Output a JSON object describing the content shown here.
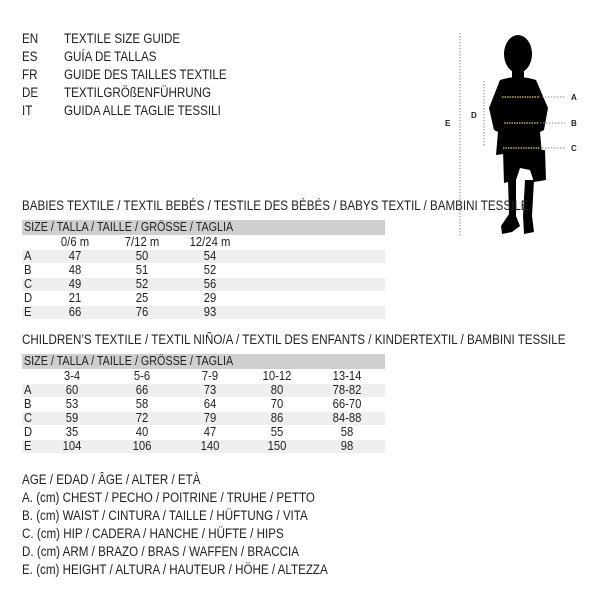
{
  "header": [
    {
      "code": "EN",
      "text": "TEXTILE SIZE GUIDE"
    },
    {
      "code": "ES",
      "text": "GUÍA DE TALLAS"
    },
    {
      "code": "FR",
      "text": "GUIDE DES TAILLES TEXTILE"
    },
    {
      "code": "DE",
      "text": "TEXTILGRÖßENFÜHRUNG"
    },
    {
      "code": "IT",
      "text": "GUIDA ALLE TAGLIE TESSILI"
    }
  ],
  "figure": {
    "labels": {
      "a": "A",
      "b": "B",
      "c": "C",
      "d": "D",
      "e": "E"
    },
    "measure_color": "#e8d21a"
  },
  "babies": {
    "title": "BABIES TEXTILE / TEXTIL BEBÉS / TESTILE DES BÉBÉS / BABYS TEXTIL / BAMBINI TESSILE",
    "size_header": "SIZE / TALLA / TAILLE / GRÖSSE / TAGLIA",
    "columns": [
      "0/6 m",
      "7/12 m",
      "12/24 m"
    ],
    "rows": [
      {
        "label": "A",
        "values": [
          "47",
          "50",
          "54"
        ]
      },
      {
        "label": "B",
        "values": [
          "48",
          "51",
          "52"
        ]
      },
      {
        "label": "C",
        "values": [
          "49",
          "52",
          "56"
        ]
      },
      {
        "label": "D",
        "values": [
          "21",
          "25",
          "29"
        ]
      },
      {
        "label": "E",
        "values": [
          "66",
          "76",
          "93"
        ]
      }
    ]
  },
  "children": {
    "title": "CHILDREN’S TEXTILE / TEXTIL NIÑO/A / TEXTIL DES ENFANTS / KINDERTEXTIL / BAMBINI TESSILE",
    "size_header": "SIZE / TALLA / TAILLE / GRÖSSE / TAGLIA",
    "columns": [
      "3-4",
      "5-6",
      "7-9",
      "10-12",
      "13-14"
    ],
    "rows": [
      {
        "label": "A",
        "values": [
          "60",
          "66",
          "73",
          "80",
          "78-82"
        ]
      },
      {
        "label": "B",
        "values": [
          "53",
          "58",
          "64",
          "70",
          "66-70"
        ]
      },
      {
        "label": "C",
        "values": [
          "59",
          "72",
          "79",
          "86",
          "84-88"
        ]
      },
      {
        "label": "D",
        "values": [
          "35",
          "40",
          "47",
          "55",
          "58"
        ]
      },
      {
        "label": "E",
        "values": [
          "104",
          "106",
          "140",
          "150",
          "98"
        ]
      }
    ]
  },
  "legend": [
    "AGE / EDAD / ÂGE / ALTER / ETÀ",
    "A. (cm) CHEST / PECHO / POITRINE / TRUHE / PETTO",
    "B. (cm) WAIST / CINTURA / TAILLE / HÜFTUNG / VITA",
    "C. (cm) HIP / CADERA / HANCHE / HÜFTE / HIPS",
    "D. (cm) ARM / BRAZO / BRAS / WAFFEN / BRACCIA",
    "E. (cm) HEIGHT / ALTURA / HAUTEUR / HÖHE / ALTEZZA"
  ]
}
